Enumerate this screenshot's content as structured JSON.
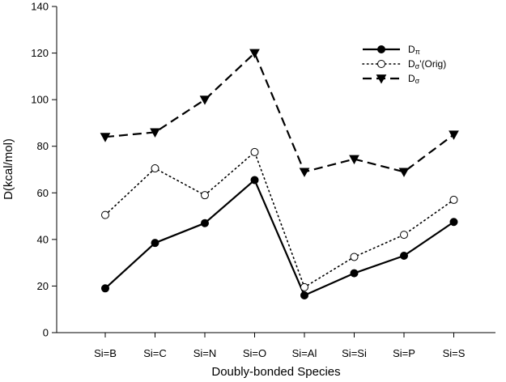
{
  "chart_data": {
    "type": "line",
    "title": "",
    "xlabel": "Doubly-bonded Species",
    "ylabel": "D(kcal/mol)",
    "ylim": [
      0,
      140
    ],
    "yticks": [
      0,
      20,
      40,
      60,
      80,
      100,
      120,
      140
    ],
    "categories": [
      "Si=B",
      "Si=C",
      "Si=N",
      "Si=O",
      "Si=Al",
      "Si=Si",
      "Si=P",
      "Si=S"
    ],
    "grid": false,
    "legend": "top-right",
    "series": [
      {
        "name": "Dπ",
        "name_base": "D",
        "name_sub": "π",
        "name_suffix": "",
        "line": "solid",
        "marker": "filled-circle",
        "values": [
          19,
          38.5,
          47,
          65.5,
          16,
          25.5,
          33,
          47.5
        ]
      },
      {
        "name": "Dσ'(Orig)",
        "name_base": "D",
        "name_sub": "σ",
        "name_suffix": "'(Orig)",
        "line": "dotted",
        "marker": "open-circle",
        "values": [
          50.5,
          70.5,
          59,
          77.5,
          19.5,
          32.5,
          42,
          57
        ]
      },
      {
        "name": "Dσ",
        "name_base": "D",
        "name_sub": "σ",
        "name_suffix": "",
        "line": "dashed",
        "marker": "filled-triangle-down",
        "values": [
          84,
          86,
          100,
          120,
          69,
          74.5,
          69,
          85
        ]
      }
    ]
  }
}
